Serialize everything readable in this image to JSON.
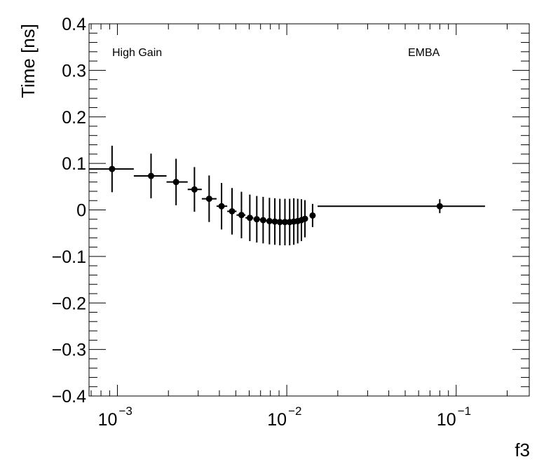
{
  "chart_data": {
    "type": "scatter",
    "error_bars": true,
    "title": "",
    "xlabel": "f3",
    "ylabel": "Time [ns]",
    "xscale": "log",
    "xlim": [
      0.00068,
      0.27
    ],
    "ylim": [
      -0.4,
      0.4
    ],
    "grid": false,
    "annotations": [
      "High Gain",
      "EMBA"
    ],
    "x_tick_labels": [
      {
        "base": "10",
        "exp": "−3",
        "value": 0.001
      },
      {
        "base": "10",
        "exp": "−2",
        "value": 0.01
      },
      {
        "base": "10",
        "exp": "−1",
        "value": 0.1
      }
    ],
    "y_tick_labels": [
      "0.4",
      "0.3",
      "0.2",
      "0.1",
      "0",
      "−0.1",
      "−0.2",
      "−0.3",
      "−0.4"
    ],
    "y_ticks": [
      0.4,
      0.3,
      0.2,
      0.1,
      0,
      -0.1,
      -0.2,
      -0.3,
      -0.4
    ],
    "points": [
      {
        "x": 0.00093,
        "xlo": 0.00068,
        "xhi": 0.00125,
        "y": 0.088,
        "err": 0.05
      },
      {
        "x": 0.00158,
        "xlo": 0.00125,
        "xhi": 0.00195,
        "y": 0.073,
        "err": 0.048
      },
      {
        "x": 0.00222,
        "xlo": 0.00195,
        "xhi": 0.0026,
        "y": 0.06,
        "err": 0.05
      },
      {
        "x": 0.00285,
        "xlo": 0.0026,
        "xhi": 0.00315,
        "y": 0.044,
        "err": 0.048
      },
      {
        "x": 0.00348,
        "xlo": 0.00315,
        "xhi": 0.00385,
        "y": 0.024,
        "err": 0.05
      },
      {
        "x": 0.00412,
        "xlo": 0.00385,
        "xhi": 0.00445,
        "y": 0.008,
        "err": 0.05
      },
      {
        "x": 0.00475,
        "xlo": 0.00445,
        "xhi": 0.00505,
        "y": -0.003,
        "err": 0.05
      },
      {
        "x": 0.0054,
        "xlo": 0.00505,
        "xhi": 0.0057,
        "y": -0.011,
        "err": 0.05
      },
      {
        "x": 0.00605,
        "xlo": 0.0057,
        "xhi": 0.00635,
        "y": -0.017,
        "err": 0.05
      },
      {
        "x": 0.00665,
        "xlo": 0.00635,
        "xhi": 0.00695,
        "y": -0.02,
        "err": 0.05
      },
      {
        "x": 0.00725,
        "xlo": 0.00695,
        "xhi": 0.00755,
        "y": -0.022,
        "err": 0.05
      },
      {
        "x": 0.0079,
        "xlo": 0.00755,
        "xhi": 0.0082,
        "y": -0.024,
        "err": 0.05
      },
      {
        "x": 0.0085,
        "xlo": 0.0082,
        "xhi": 0.0088,
        "y": -0.025,
        "err": 0.05
      },
      {
        "x": 0.0091,
        "xlo": 0.0088,
        "xhi": 0.0094,
        "y": -0.026,
        "err": 0.05
      },
      {
        "x": 0.00975,
        "xlo": 0.0094,
        "xhi": 0.01005,
        "y": -0.026,
        "err": 0.05
      },
      {
        "x": 0.0104,
        "xlo": 0.01005,
        "xhi": 0.0107,
        "y": -0.026,
        "err": 0.05
      },
      {
        "x": 0.011,
        "xlo": 0.0107,
        "xhi": 0.0113,
        "y": -0.025,
        "err": 0.05
      },
      {
        "x": 0.0116,
        "xlo": 0.0113,
        "xhi": 0.0119,
        "y": -0.024,
        "err": 0.048
      },
      {
        "x": 0.0122,
        "xlo": 0.0119,
        "xhi": 0.0126,
        "y": -0.022,
        "err": 0.045
      },
      {
        "x": 0.0128,
        "xlo": 0.0126,
        "xhi": 0.0132,
        "y": -0.019,
        "err": 0.04
      },
      {
        "x": 0.0142,
        "xlo": 0.0138,
        "xhi": 0.0147,
        "y": -0.012,
        "err": 0.025
      },
      {
        "x": 0.08,
        "xlo": 0.0152,
        "xhi": 0.148,
        "y": 0.008,
        "err": 0.015
      }
    ]
  }
}
